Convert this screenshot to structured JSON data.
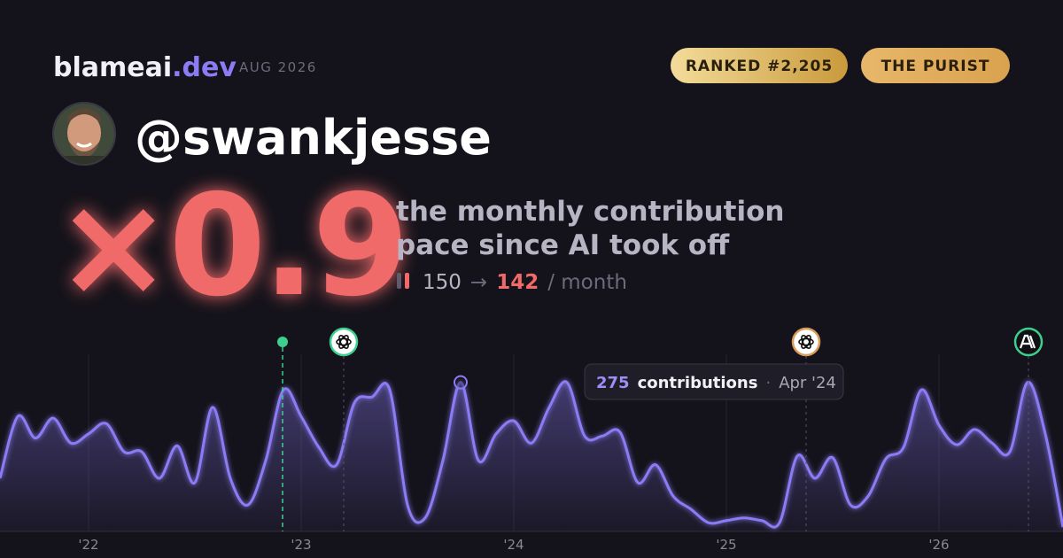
{
  "header": {
    "brand": "blameai",
    "brand_suffix": ".dev",
    "date": "AUG 2026",
    "badges": [
      "RANKED #2,205",
      "THE PURIST"
    ]
  },
  "profile": {
    "handle": "@swankjesse"
  },
  "stat": {
    "multiplier": "×0.9",
    "caption_lines": [
      "the monthly contribution",
      "pace since AI took off"
    ],
    "before": 150,
    "arrow": "→",
    "after": 142,
    "unit": "/ month"
  },
  "tooltip": {
    "value": 275,
    "label": "contributions",
    "separator": "·",
    "date": "Apr '24"
  },
  "chart_data": {
    "type": "area",
    "categories": [
      null,
      null,
      null,
      null,
      null,
      "'22",
      null,
      null,
      null,
      null,
      null,
      null,
      null,
      null,
      null,
      null,
      null,
      "'23",
      null,
      null,
      null,
      null,
      null,
      null,
      null,
      null,
      null,
      null,
      null,
      "'24",
      null,
      null,
      null,
      null,
      null,
      null,
      null,
      null,
      null,
      null,
      null,
      "'25",
      null,
      null,
      null,
      null,
      null,
      null,
      null,
      null,
      null,
      null,
      null,
      "'26",
      null,
      null,
      null,
      null,
      null,
      null,
      null
    ],
    "series": [
      {
        "color": "#8b7cf6",
        "values": [
          98,
          212,
          172,
          209,
          163,
          180,
          199,
          147,
          147,
          98,
          158,
          90,
          229,
          98,
          49,
          131,
          261,
          212,
          155,
          123,
          237,
          248,
          261,
          49,
          25,
          131,
          275,
          131,
          180,
          204,
          163,
          229,
          275,
          176,
          176,
          183,
          90,
          123,
          65,
          41,
          16,
          20,
          25,
          20,
          16,
          139,
          98,
          136,
          49,
          65,
          134,
          155,
          261,
          196,
          160,
          188,
          163,
          147,
          275,
          180,
          8
        ]
      }
    ],
    "ylim": [
      0,
      330
    ],
    "grid": true
  }
}
